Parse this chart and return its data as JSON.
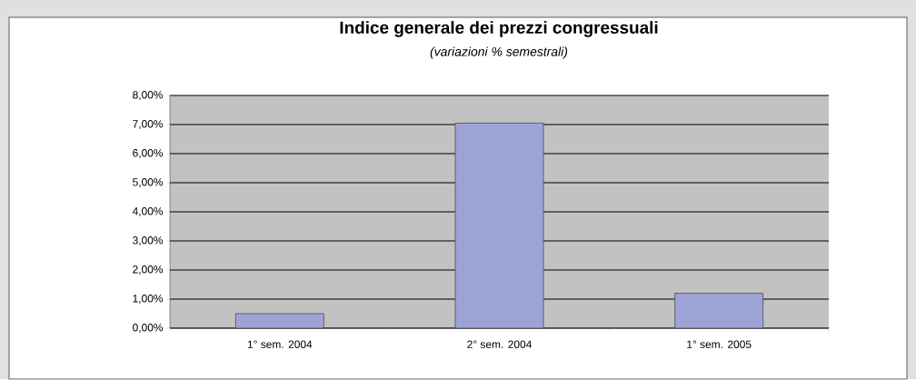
{
  "chart_data": {
    "type": "bar",
    "title": "Indice generale dei prezzi congressuali",
    "subtitle": "(variazioni % semestrali)",
    "categories": [
      "1° sem. 2004",
      "2° sem. 2004",
      "1° sem. 2005"
    ],
    "values": [
      0.5,
      7.05,
      1.2
    ],
    "color": "#9ea3d6",
    "ylim": [
      0,
      8
    ],
    "yticks": [
      {
        "value": 0,
        "label": "0,00%"
      },
      {
        "value": 1,
        "label": "1,00%"
      },
      {
        "value": 2,
        "label": "2,00%"
      },
      {
        "value": 3,
        "label": "3,00%"
      },
      {
        "value": 4,
        "label": "4,00%"
      },
      {
        "value": 5,
        "label": "5,00%"
      },
      {
        "value": 6,
        "label": "6,00%"
      },
      {
        "value": 7,
        "label": "7,00%"
      },
      {
        "value": 8,
        "label": "8,00%"
      }
    ],
    "grid": "y"
  }
}
